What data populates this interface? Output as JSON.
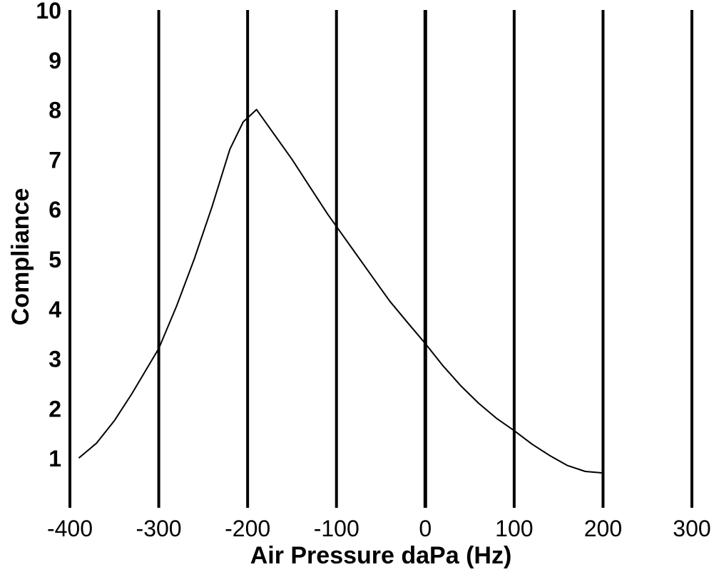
{
  "chart_data": {
    "type": "line",
    "xlabel": "Air Pressure daPa (Hz)",
    "ylabel": "Compliance",
    "xlim": [
      -400,
      300
    ],
    "ylim": [
      0,
      10
    ],
    "x_ticks": [
      "-400",
      "-300",
      "-200",
      "-100",
      "0",
      "100",
      "200",
      "300"
    ],
    "y_ticks": [
      "1",
      "2",
      "3",
      "4",
      "5",
      "6",
      "7",
      "8",
      "9",
      "10"
    ],
    "grid": "vertical",
    "series": [
      {
        "x": [
          -390,
          -370,
          -350,
          -330,
          -310,
          -300,
          -280,
          -260,
          -240,
          -220,
          -205,
          -190,
          -170,
          -150,
          -130,
          -110,
          -100,
          -80,
          -60,
          -40,
          -20,
          0,
          20,
          40,
          60,
          80,
          100,
          120,
          140,
          160,
          180,
          200
        ],
        "y": [
          1.0,
          1.3,
          1.75,
          2.3,
          2.9,
          3.2,
          4.05,
          5.0,
          6.05,
          7.2,
          7.75,
          8.0,
          7.5,
          7.0,
          6.45,
          5.9,
          5.65,
          5.15,
          4.65,
          4.15,
          3.72,
          3.3,
          2.85,
          2.45,
          2.1,
          1.8,
          1.55,
          1.28,
          1.05,
          0.85,
          0.73,
          0.7
        ],
        "color": "#000000"
      }
    ]
  }
}
